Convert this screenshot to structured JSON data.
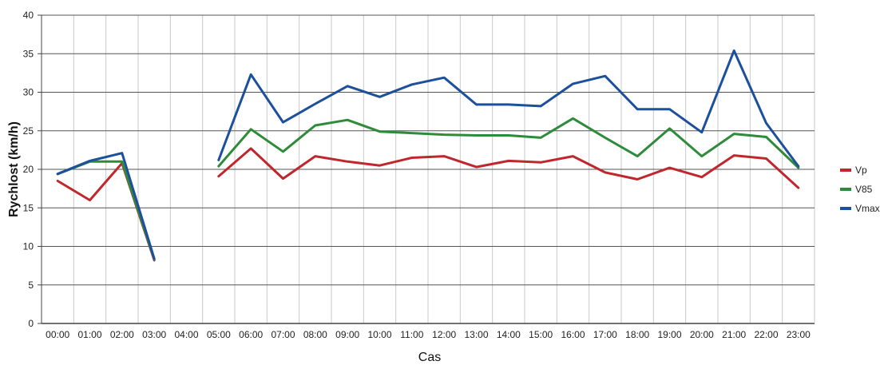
{
  "chart_data": {
    "type": "line",
    "categories": [
      "00:00",
      "01:00",
      "02:00",
      "03:00",
      "04:00",
      "05:00",
      "06:00",
      "07:00",
      "08:00",
      "09:00",
      "10:00",
      "11:00",
      "12:00",
      "13:00",
      "14:00",
      "15:00",
      "16:00",
      "17:00",
      "18:00",
      "19:00",
      "20:00",
      "21:00",
      "22:00",
      "23:00"
    ],
    "xlabel": "Cas",
    "ylabel": "Rychlost (km/h)",
    "ylim": [
      0,
      40
    ],
    "yticks": [
      0,
      5,
      10,
      15,
      20,
      25,
      30,
      35,
      40
    ],
    "grid": true,
    "legend_position": "right",
    "series": [
      {
        "name": "Vp",
        "color": "#c0272d",
        "values": [
          18.5,
          16.0,
          20.8,
          8.2,
          null,
          19.1,
          22.7,
          18.8,
          21.7,
          21.0,
          20.5,
          21.5,
          21.7,
          20.3,
          21.1,
          20.9,
          21.7,
          19.6,
          18.7,
          20.2,
          19.0,
          21.8,
          21.4,
          17.6
        ]
      },
      {
        "name": "V85",
        "color": "#2e8b3a",
        "values": [
          19.4,
          21.0,
          21.0,
          8.3,
          null,
          20.4,
          25.2,
          22.3,
          25.7,
          26.4,
          24.9,
          24.7,
          24.5,
          24.4,
          24.4,
          24.1,
          26.6,
          24.1,
          21.7,
          25.3,
          21.7,
          24.6,
          24.2,
          20.2
        ]
      },
      {
        "name": "Vmax",
        "color": "#1c4f9c",
        "values": [
          19.4,
          21.1,
          22.1,
          8.4,
          null,
          21.2,
          32.3,
          26.1,
          28.5,
          30.8,
          29.4,
          31.0,
          31.9,
          28.4,
          28.4,
          28.2,
          31.1,
          32.1,
          27.8,
          27.8,
          24.8,
          35.4,
          26.0,
          20.4
        ]
      }
    ]
  }
}
